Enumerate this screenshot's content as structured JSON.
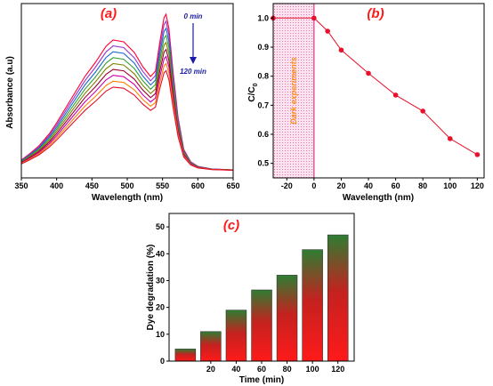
{
  "chart_data": [
    {
      "type": "line",
      "panel_label": "(a)",
      "xlabel": "Wavelength (nm)",
      "ylabel": "Absorbance (a.u)",
      "xlim": [
        350,
        650
      ],
      "xticks": [
        "350",
        "400",
        "450",
        "500",
        "550",
        "600",
        "650"
      ],
      "annotations": {
        "start": "0 min",
        "end": "120 min"
      },
      "colors": [
        "#ff0033",
        "#9933cc",
        "#1a66cc",
        "#33a033",
        "#808000",
        "#990033",
        "#cc00aa",
        "#ff8000",
        "#e0102a"
      ]
    },
    {
      "type": "line",
      "panel_label": "(b)",
      "xlabel": "Wavelength (nm)",
      "ylabel_main": "C/C",
      "ylabel_sub": "0",
      "xlim": [
        -30,
        125
      ],
      "ylim": [
        0.45,
        1.05
      ],
      "xticks": [
        "-20",
        "0",
        "20",
        "40",
        "60",
        "80",
        "100",
        "120"
      ],
      "yticks": [
        "0.5",
        "0.6",
        "0.7",
        "0.8",
        "0.9",
        "1.0"
      ],
      "x": [
        -30,
        0,
        10,
        20,
        40,
        60,
        80,
        100,
        120
      ],
      "y": [
        1.0,
        1.0,
        0.955,
        0.89,
        0.81,
        0.735,
        0.68,
        0.585,
        0.53
      ],
      "dark_region": {
        "from": -30,
        "to": 0,
        "label": "Dark experiments"
      },
      "color": "#e8102a"
    },
    {
      "type": "bar",
      "panel_label": "(c)",
      "xlabel": "Time (min)",
      "ylabel": "Dye degradation (%)",
      "ylim": [
        0,
        55
      ],
      "yticks": [
        "0",
        "10",
        "20",
        "30",
        "40",
        "50"
      ],
      "categories": [
        "",
        "20",
        "40",
        "60",
        "80",
        "100",
        "120"
      ],
      "values": [
        4.5,
        11,
        19,
        26.5,
        32,
        41.5,
        47
      ],
      "colors": {
        "top": "#2e7d32",
        "bottom": "#ff1a1a"
      }
    }
  ]
}
